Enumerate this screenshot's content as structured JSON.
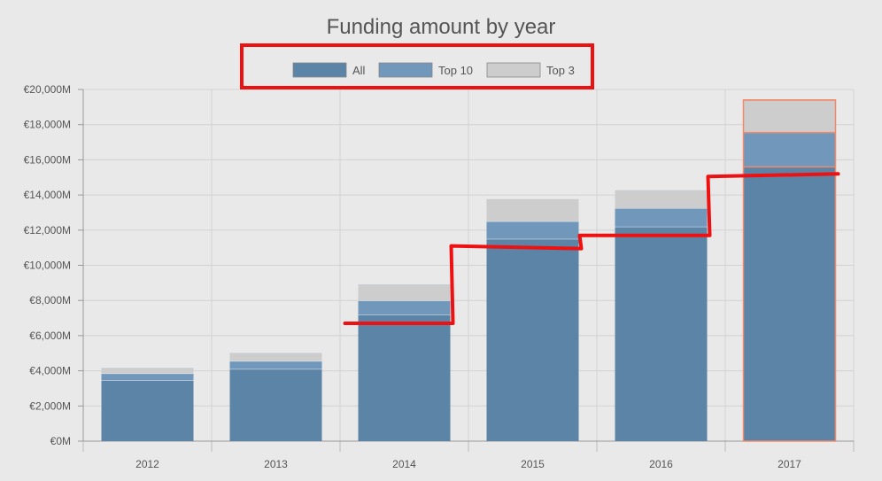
{
  "chart_data": {
    "type": "bar",
    "stacked": true,
    "title": "Funding amount by year",
    "xlabel": "",
    "ylabel": "",
    "categories": [
      "2012",
      "2013",
      "2014",
      "2015",
      "2016",
      "2017"
    ],
    "series": [
      {
        "name": "All",
        "values": [
          3450,
          4100,
          7200,
          11500,
          12200,
          15600
        ],
        "color": "#5b84a7"
      },
      {
        "name": "Top 10",
        "values": [
          400,
          450,
          800,
          1000,
          1050,
          1950
        ],
        "color": "#7197bb"
      },
      {
        "name": "Top 3",
        "values": [
          350,
          500,
          950,
          1300,
          1050,
          1850
        ],
        "color": "#cdcdcd"
      }
    ],
    "yticks": [
      0,
      2000,
      4000,
      6000,
      8000,
      10000,
      12000,
      14000,
      16000,
      18000,
      20000
    ],
    "ytick_labels": [
      "€0M",
      "€2,000M",
      "€4,000M",
      "€6,000M",
      "€8,000M",
      "€10,000M",
      "€12,000M",
      "€14,000M",
      "€16,000M",
      "€18,000M",
      "€20,000M"
    ],
    "ylim": [
      0,
      20000
    ],
    "grid": true,
    "legend": "top-center",
    "highlighted_category": "2017",
    "highlight_color": "#f08a6a",
    "annotations": {
      "legend_box_color": "#ee1111",
      "trend_line_color": "#ee1111",
      "trend_line_points": [
        {
          "x": "2014",
          "pos": "start",
          "y": 6700
        },
        {
          "x": "2014",
          "pos": "end",
          "y": 6700
        },
        {
          "x": "2015",
          "pos": "start",
          "y": 11100
        },
        {
          "x": "2015",
          "pos": "end",
          "y": 10950
        },
        {
          "x": "2016",
          "pos": "start",
          "y": 11700
        },
        {
          "x": "2016",
          "pos": "end",
          "y": 11700
        },
        {
          "x": "2017",
          "pos": "start",
          "y": 15050
        },
        {
          "x": "2017",
          "pos": "end",
          "y": 15200
        }
      ]
    }
  }
}
